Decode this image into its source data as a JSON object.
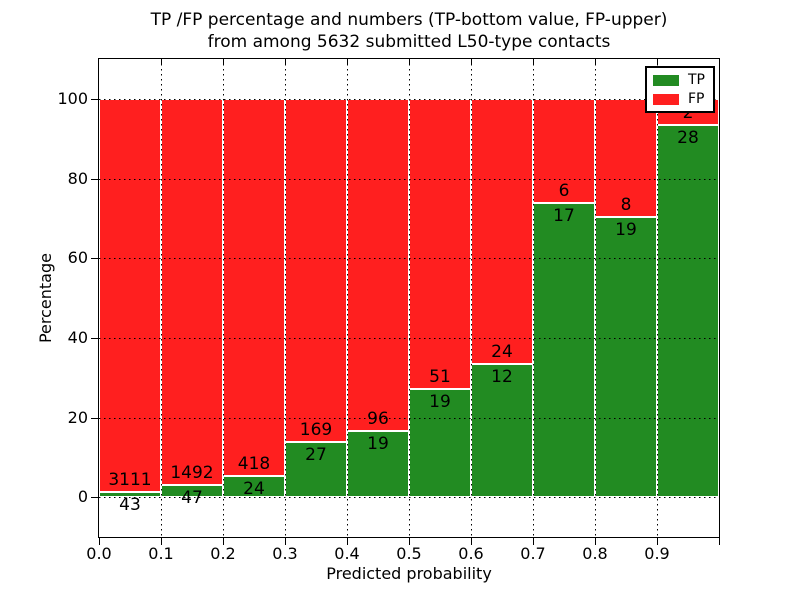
{
  "title": {
    "line1": "TP /FP percentage and numbers (TP-bottom value, FP-upper)",
    "line2": "from among 5632 submitted L50-type contacts"
  },
  "axes": {
    "xlabel": "Predicted probability",
    "ylabel": "Percentage",
    "ytick_labels": [
      "0",
      "20",
      "40",
      "60",
      "80",
      "100"
    ],
    "ytick_values": [
      0,
      20,
      40,
      60,
      80,
      100
    ],
    "xtick_labels": [
      "0.0",
      "0.1",
      "0.2",
      "0.3",
      "0.4",
      "0.5",
      "0.6",
      "0.7",
      "0.8",
      "0.9"
    ],
    "xtick_values": [
      0.0,
      0.1,
      0.2,
      0.3,
      0.4,
      0.5,
      0.6,
      0.7,
      0.8,
      0.9
    ]
  },
  "legend": {
    "items": [
      {
        "label": "TP",
        "color": "#228b22"
      },
      {
        "label": "FP",
        "color": "#ff1f1f"
      }
    ]
  },
  "colors": {
    "tp": "#228b22",
    "fp": "#ff1f1f",
    "background": "#ffffff",
    "frame": "#000000",
    "text": "#000000"
  },
  "chart_data": {
    "type": "bar",
    "stacked": true,
    "normalized_to_percent": true,
    "title": "TP /FP percentage and numbers (TP-bottom value, FP-upper) from among 5632 submitted L50-type contacts",
    "xlabel": "Predicted probability",
    "ylabel": "Percentage",
    "total_contacts": 5632,
    "bin_starts": [
      0.0,
      0.1,
      0.2,
      0.3,
      0.4,
      0.5,
      0.6,
      0.7,
      0.8,
      0.9
    ],
    "bin_width": 0.1,
    "series": [
      {
        "name": "TP",
        "position": "bottom",
        "color": "#228b22",
        "values": [
          43,
          47,
          24,
          27,
          19,
          19,
          12,
          17,
          19,
          28
        ]
      },
      {
        "name": "FP",
        "position": "top",
        "color": "#ff1f1f",
        "values": [
          3111,
          1492,
          418,
          169,
          96,
          51,
          24,
          6,
          8,
          2
        ]
      }
    ],
    "tp_percent": [
      1.36,
      3.05,
      5.43,
      13.78,
      16.52,
      27.14,
      33.33,
      73.91,
      70.37,
      93.33
    ],
    "xlim": [
      0,
      1
    ],
    "ylim": [
      -10,
      110
    ],
    "yticks": [
      0,
      20,
      40,
      60,
      80,
      100
    ],
    "grid": "dotted",
    "legend_position": "upper right"
  }
}
